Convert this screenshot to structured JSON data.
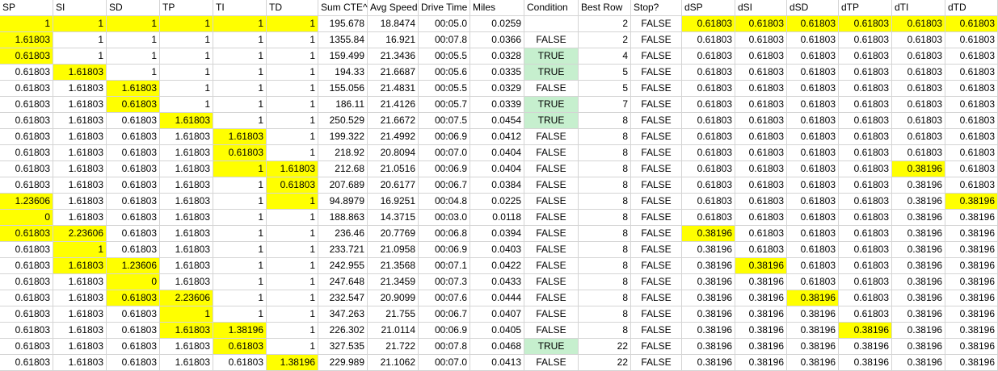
{
  "sheet": {
    "headers": [
      "SP",
      "SI",
      "SD",
      "TP",
      "TI",
      "TD",
      "Sum CTE^",
      "Avg Speed",
      "Drive Time",
      "Miles",
      "Condition",
      "Best Row",
      "Stop?",
      "dSP",
      "dSI",
      "dSD",
      "dTP",
      "dTI",
      "dTD"
    ],
    "rows": [
      [
        "1",
        "1",
        "1",
        "1",
        "1",
        "1",
        "195.678",
        "18.8474",
        "00:05.0",
        "0.0259",
        "",
        "2",
        "FALSE",
        "0.61803",
        "0.61803",
        "0.61803",
        "0.61803",
        "0.61803",
        "0.61803"
      ],
      [
        "1.61803",
        "1",
        "1",
        "1",
        "1",
        "1",
        "1355.84",
        "16.921",
        "00:07.8",
        "0.0366",
        "FALSE",
        "2",
        "FALSE",
        "0.61803",
        "0.61803",
        "0.61803",
        "0.61803",
        "0.61803",
        "0.61803"
      ],
      [
        "0.61803",
        "1",
        "1",
        "1",
        "1",
        "1",
        "159.499",
        "21.3436",
        "00:05.5",
        "0.0328",
        "TRUE",
        "4",
        "FALSE",
        "0.61803",
        "0.61803",
        "0.61803",
        "0.61803",
        "0.61803",
        "0.61803"
      ],
      [
        "0.61803",
        "1.61803",
        "1",
        "1",
        "1",
        "1",
        "194.33",
        "21.6687",
        "00:05.6",
        "0.0335",
        "TRUE",
        "5",
        "FALSE",
        "0.61803",
        "0.61803",
        "0.61803",
        "0.61803",
        "0.61803",
        "0.61803"
      ],
      [
        "0.61803",
        "1.61803",
        "1.61803",
        "1",
        "1",
        "1",
        "155.056",
        "21.4831",
        "00:05.5",
        "0.0329",
        "FALSE",
        "5",
        "FALSE",
        "0.61803",
        "0.61803",
        "0.61803",
        "0.61803",
        "0.61803",
        "0.61803"
      ],
      [
        "0.61803",
        "1.61803",
        "0.61803",
        "1",
        "1",
        "1",
        "186.11",
        "21.4126",
        "00:05.7",
        "0.0339",
        "TRUE",
        "7",
        "FALSE",
        "0.61803",
        "0.61803",
        "0.61803",
        "0.61803",
        "0.61803",
        "0.61803"
      ],
      [
        "0.61803",
        "1.61803",
        "0.61803",
        "1.61803",
        "1",
        "1",
        "250.529",
        "21.6672",
        "00:07.5",
        "0.0454",
        "TRUE",
        "8",
        "FALSE",
        "0.61803",
        "0.61803",
        "0.61803",
        "0.61803",
        "0.61803",
        "0.61803"
      ],
      [
        "0.61803",
        "1.61803",
        "0.61803",
        "1.61803",
        "1.61803",
        "1",
        "199.322",
        "21.4992",
        "00:06.9",
        "0.0412",
        "FALSE",
        "8",
        "FALSE",
        "0.61803",
        "0.61803",
        "0.61803",
        "0.61803",
        "0.61803",
        "0.61803"
      ],
      [
        "0.61803",
        "1.61803",
        "0.61803",
        "1.61803",
        "0.61803",
        "1",
        "218.92",
        "20.8094",
        "00:07.0",
        "0.0404",
        "FALSE",
        "8",
        "FALSE",
        "0.61803",
        "0.61803",
        "0.61803",
        "0.61803",
        "0.61803",
        "0.61803"
      ],
      [
        "0.61803",
        "1.61803",
        "0.61803",
        "1.61803",
        "1",
        "1.61803",
        "212.68",
        "21.0516",
        "00:06.9",
        "0.0404",
        "FALSE",
        "8",
        "FALSE",
        "0.61803",
        "0.61803",
        "0.61803",
        "0.61803",
        "0.38196",
        "0.61803"
      ],
      [
        "0.61803",
        "1.61803",
        "0.61803",
        "1.61803",
        "1",
        "0.61803",
        "207.689",
        "20.6177",
        "00:06.7",
        "0.0384",
        "FALSE",
        "8",
        "FALSE",
        "0.61803",
        "0.61803",
        "0.61803",
        "0.61803",
        "0.38196",
        "0.61803"
      ],
      [
        "1.23606",
        "1.61803",
        "0.61803",
        "1.61803",
        "1",
        "1",
        "94.8979",
        "16.9251",
        "00:04.8",
        "0.0225",
        "FALSE",
        "8",
        "FALSE",
        "0.61803",
        "0.61803",
        "0.61803",
        "0.61803",
        "0.38196",
        "0.38196"
      ],
      [
        "0",
        "1.61803",
        "0.61803",
        "1.61803",
        "1",
        "1",
        "188.863",
        "14.3715",
        "00:03.0",
        "0.0118",
        "FALSE",
        "8",
        "FALSE",
        "0.61803",
        "0.61803",
        "0.61803",
        "0.61803",
        "0.38196",
        "0.38196"
      ],
      [
        "0.61803",
        "2.23606",
        "0.61803",
        "1.61803",
        "1",
        "1",
        "236.46",
        "20.7769",
        "00:06.8",
        "0.0394",
        "FALSE",
        "8",
        "FALSE",
        "0.38196",
        "0.61803",
        "0.61803",
        "0.61803",
        "0.38196",
        "0.38196"
      ],
      [
        "0.61803",
        "1",
        "0.61803",
        "1.61803",
        "1",
        "1",
        "233.721",
        "21.0958",
        "00:06.9",
        "0.0403",
        "FALSE",
        "8",
        "FALSE",
        "0.38196",
        "0.61803",
        "0.61803",
        "0.61803",
        "0.38196",
        "0.38196"
      ],
      [
        "0.61803",
        "1.61803",
        "1.23606",
        "1.61803",
        "1",
        "1",
        "242.955",
        "21.3568",
        "00:07.1",
        "0.0422",
        "FALSE",
        "8",
        "FALSE",
        "0.38196",
        "0.38196",
        "0.61803",
        "0.61803",
        "0.38196",
        "0.38196"
      ],
      [
        "0.61803",
        "1.61803",
        "0",
        "1.61803",
        "1",
        "1",
        "247.648",
        "21.3459",
        "00:07.3",
        "0.0433",
        "FALSE",
        "8",
        "FALSE",
        "0.38196",
        "0.38196",
        "0.61803",
        "0.61803",
        "0.38196",
        "0.38196"
      ],
      [
        "0.61803",
        "1.61803",
        "0.61803",
        "2.23606",
        "1",
        "1",
        "232.547",
        "20.9099",
        "00:07.6",
        "0.0444",
        "FALSE",
        "8",
        "FALSE",
        "0.38196",
        "0.38196",
        "0.38196",
        "0.61803",
        "0.38196",
        "0.38196"
      ],
      [
        "0.61803",
        "1.61803",
        "0.61803",
        "1",
        "1",
        "1",
        "347.263",
        "21.755",
        "00:06.7",
        "0.0407",
        "FALSE",
        "8",
        "FALSE",
        "0.38196",
        "0.38196",
        "0.38196",
        "0.61803",
        "0.38196",
        "0.38196"
      ],
      [
        "0.61803",
        "1.61803",
        "0.61803",
        "1.61803",
        "1.38196",
        "1",
        "226.302",
        "21.0114",
        "00:06.9",
        "0.0405",
        "FALSE",
        "8",
        "FALSE",
        "0.38196",
        "0.38196",
        "0.38196",
        "0.38196",
        "0.38196",
        "0.38196"
      ],
      [
        "0.61803",
        "1.61803",
        "0.61803",
        "1.61803",
        "0.61803",
        "1",
        "327.535",
        "21.722",
        "00:07.8",
        "0.0468",
        "TRUE",
        "22",
        "FALSE",
        "0.38196",
        "0.38196",
        "0.38196",
        "0.38196",
        "0.38196",
        "0.38196"
      ],
      [
        "0.61803",
        "1.61803",
        "0.61803",
        "1.61803",
        "0.61803",
        "1.38196",
        "229.989",
        "21.1062",
        "00:07.0",
        "0.0413",
        "FALSE",
        "22",
        "FALSE",
        "0.38196",
        "0.38196",
        "0.38196",
        "0.38196",
        "0.38196",
        "0.38196"
      ]
    ],
    "highlights": {
      "yellow": [
        [
          0,
          0
        ],
        [
          0,
          1
        ],
        [
          0,
          2
        ],
        [
          0,
          3
        ],
        [
          0,
          4
        ],
        [
          0,
          5
        ],
        [
          0,
          13
        ],
        [
          0,
          14
        ],
        [
          0,
          15
        ],
        [
          0,
          16
        ],
        [
          0,
          17
        ],
        [
          0,
          18
        ],
        [
          1,
          0
        ],
        [
          2,
          0
        ],
        [
          3,
          1
        ],
        [
          4,
          2
        ],
        [
          5,
          2
        ],
        [
          6,
          3
        ],
        [
          7,
          4
        ],
        [
          8,
          4
        ],
        [
          9,
          4
        ],
        [
          9,
          5
        ],
        [
          9,
          17
        ],
        [
          10,
          5
        ],
        [
          11,
          0
        ],
        [
          11,
          5
        ],
        [
          11,
          18
        ],
        [
          12,
          0
        ],
        [
          13,
          0
        ],
        [
          13,
          1
        ],
        [
          13,
          13
        ],
        [
          14,
          1
        ],
        [
          15,
          1
        ],
        [
          15,
          2
        ],
        [
          15,
          14
        ],
        [
          16,
          2
        ],
        [
          17,
          2
        ],
        [
          17,
          3
        ],
        [
          17,
          15
        ],
        [
          18,
          3
        ],
        [
          19,
          3
        ],
        [
          19,
          4
        ],
        [
          19,
          16
        ],
        [
          20,
          4
        ],
        [
          21,
          5
        ]
      ],
      "green": [
        [
          2,
          10
        ],
        [
          3,
          10
        ],
        [
          5,
          10
        ],
        [
          6,
          10
        ],
        [
          20,
          10
        ]
      ]
    },
    "colors": {
      "yellow": "#ffff00",
      "green": "#c6efce",
      "gridline": "#d4d4d4"
    }
  }
}
